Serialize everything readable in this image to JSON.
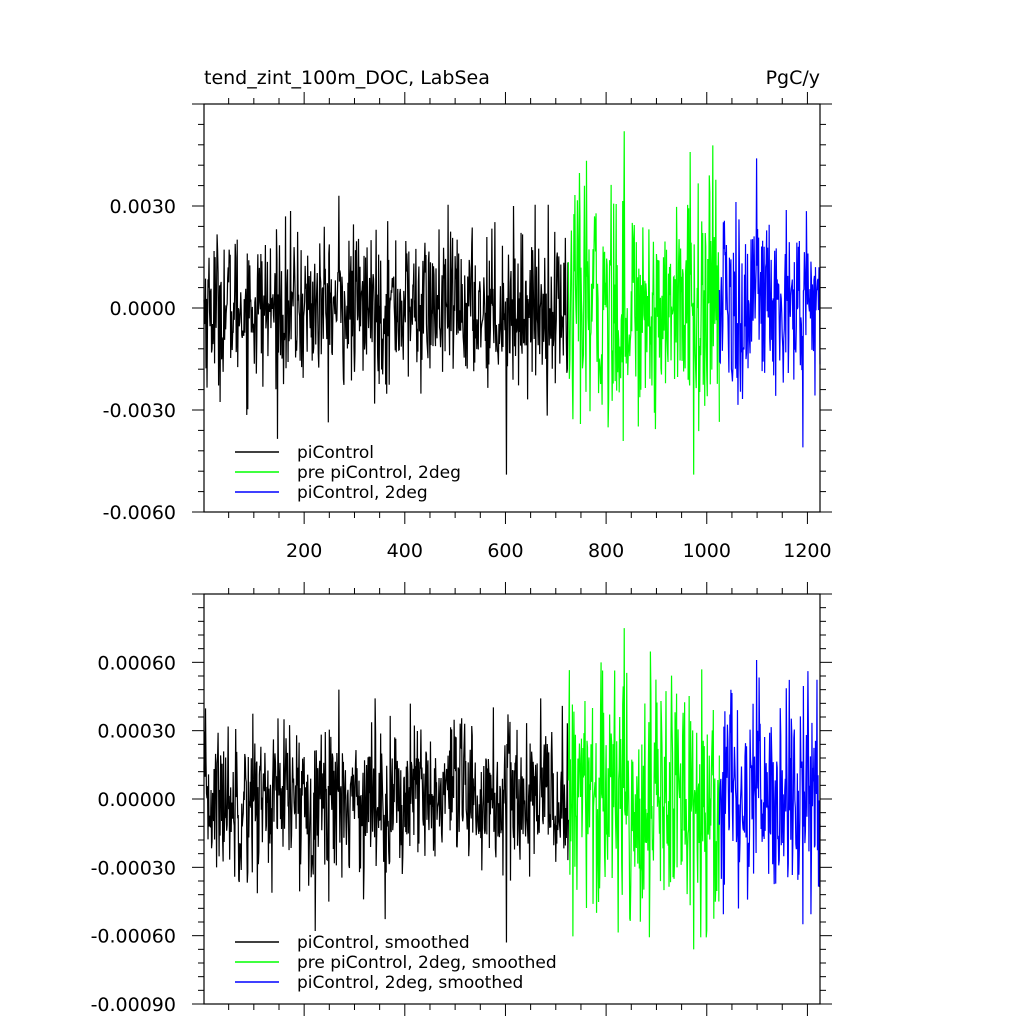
{
  "chart_data": [
    {
      "type": "line",
      "title": "tend_zint_100m_DOC, LabSea",
      "units": "PgC/y",
      "xlabel": "",
      "ylabel": "",
      "xlim": [
        1,
        1225
      ],
      "ylim": [
        -0.006,
        0.006
      ],
      "xticks": [
        200,
        400,
        600,
        800,
        1000,
        1200
      ],
      "xtick_labels": [
        "200",
        "400",
        "600",
        "800",
        "1000",
        "1200"
      ],
      "yticks": [
        -0.006,
        -0.003,
        0.0,
        0.003
      ],
      "ytick_labels": [
        "-0.0060",
        "-0.0030",
        "0.0000",
        "0.0030"
      ],
      "grid": false,
      "legend_position": "bottom-left",
      "series": [
        {
          "name": "piControl",
          "color": "#000000",
          "x_range": [
            1,
            725
          ],
          "mean": 0.0,
          "spread": 0.0011,
          "max": 0.0033,
          "min": -0.0049
        },
        {
          "name": "pre piControl, 2deg",
          "color": "#00ff00",
          "x_range": [
            725,
            1025
          ],
          "mean": 0.0,
          "spread": 0.0017,
          "max": 0.0052,
          "min": -0.0049
        },
        {
          "name": "piControl, 2deg",
          "color": "#0000ff",
          "x_range": [
            1025,
            1225
          ],
          "mean": 0.0,
          "spread": 0.0014,
          "max": 0.0044,
          "min": -0.0041
        }
      ]
    },
    {
      "type": "line",
      "title": "",
      "xlabel": "",
      "ylabel": "",
      "xlim": [
        1,
        1225
      ],
      "ylim": [
        -0.0009,
        0.0009
      ],
      "yticks": [
        -0.0009,
        -0.0006,
        -0.0003,
        0.0,
        0.0003,
        0.0006
      ],
      "ytick_labels": [
        "-0.00090",
        "-0.00060",
        "-0.00030",
        "0.00000",
        "0.00030",
        "0.00060"
      ],
      "grid": false,
      "legend_position": "bottom-left",
      "series": [
        {
          "name": "piControl, smoothed",
          "color": "#000000",
          "x_range": [
            1,
            725
          ],
          "mean": 0.0,
          "spread": 0.00017,
          "max": 0.00048,
          "min": -0.00063
        },
        {
          "name": "pre piControl, 2deg, smoothed",
          "color": "#00ff00",
          "x_range": [
            725,
            1025
          ],
          "mean": 0.0,
          "spread": 0.00027,
          "max": 0.00075,
          "min": -0.00066
        },
        {
          "name": "piControl, 2deg, smoothed",
          "color": "#0000ff",
          "x_range": [
            1025,
            1225
          ],
          "mean": 0.0,
          "spread": 0.00023,
          "max": 0.00061,
          "min": -0.00055
        }
      ]
    }
  ]
}
